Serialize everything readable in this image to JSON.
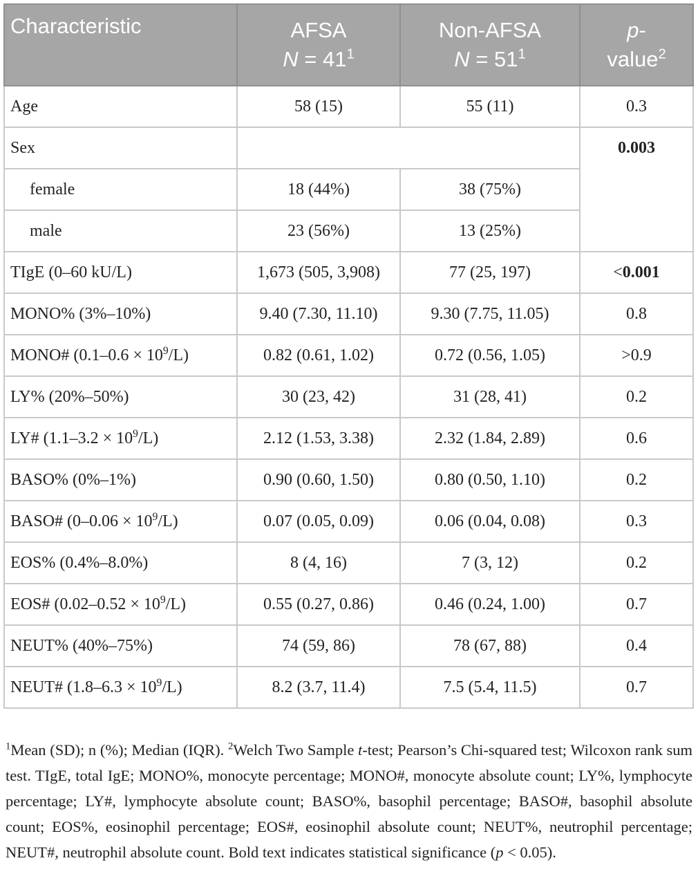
{
  "table": {
    "header": [
      [
        [
          {
            "t": "Characteristic"
          }
        ]
      ],
      [
        [
          {
            "t": "AFSA"
          }
        ],
        [
          {
            "t": "N",
            "s": "i"
          },
          {
            "t": " = 41"
          },
          {
            "t": "1",
            "s": "sup"
          }
        ]
      ],
      [
        [
          {
            "t": "Non-AFSA"
          }
        ],
        [
          {
            "t": "N",
            "s": "i"
          },
          {
            "t": " = 51"
          },
          {
            "t": "1",
            "s": "sup"
          }
        ]
      ],
      [
        [
          {
            "t": "p",
            "s": "i"
          },
          {
            "t": "-"
          }
        ],
        [
          {
            "t": "value"
          },
          {
            "t": "2",
            "s": "sup"
          }
        ]
      ]
    ],
    "rows": [
      {
        "label": [
          {
            "t": "Age"
          }
        ],
        "afsa": [
          {
            "t": "58 (15)"
          }
        ],
        "non_afsa": [
          {
            "t": "55 (11)"
          }
        ],
        "p": [
          {
            "t": "0.3"
          }
        ]
      },
      {
        "label": [
          {
            "t": "Sex"
          }
        ],
        "p": [
          {
            "t": "0.003",
            "s": "b"
          }
        ]
      },
      {
        "label": [
          {
            "t": "female"
          }
        ],
        "afsa": [
          {
            "t": "18 (44%)"
          }
        ],
        "non_afsa": [
          {
            "t": "38 (75%)"
          }
        ]
      },
      {
        "label": [
          {
            "t": "male"
          }
        ],
        "afsa": [
          {
            "t": "23 (56%)"
          }
        ],
        "non_afsa": [
          {
            "t": "13 (25%)"
          }
        ]
      },
      {
        "label": [
          {
            "t": "TIgE (0–60 kU/L)"
          }
        ],
        "afsa": [
          {
            "t": "1,673 (505, 3,908)"
          }
        ],
        "non_afsa": [
          {
            "t": "77 (25, 197)"
          }
        ],
        "p": [
          {
            "t": "<"
          },
          {
            "t": "0.001",
            "s": "b"
          }
        ]
      },
      {
        "label": [
          {
            "t": "MONO% (3%–10%)"
          }
        ],
        "afsa": [
          {
            "t": "9.40 (7.30, 11.10)"
          }
        ],
        "non_afsa": [
          {
            "t": "9.30 (7.75, 11.05)"
          }
        ],
        "p": [
          {
            "t": "0.8"
          }
        ]
      },
      {
        "label": [
          {
            "t": "MONO# (0.1–0.6 × 10"
          },
          {
            "t": "9",
            "s": "sup"
          },
          {
            "t": "/L)"
          }
        ],
        "afsa": [
          {
            "t": "0.82 (0.61, 1.02)"
          }
        ],
        "non_afsa": [
          {
            "t": "0.72 (0.56, 1.05)"
          }
        ],
        "p": [
          {
            "t": ">0.9"
          }
        ]
      },
      {
        "label": [
          {
            "t": "LY% (20%–50%)"
          }
        ],
        "afsa": [
          {
            "t": "30 (23, 42)"
          }
        ],
        "non_afsa": [
          {
            "t": "31 (28, 41)"
          }
        ],
        "p": [
          {
            "t": "0.2"
          }
        ]
      },
      {
        "label": [
          {
            "t": "LY# (1.1–3.2 × 10"
          },
          {
            "t": "9",
            "s": "sup"
          },
          {
            "t": "/L)"
          }
        ],
        "afsa": [
          {
            "t": "2.12 (1.53, 3.38)"
          }
        ],
        "non_afsa": [
          {
            "t": "2.32 (1.84, 2.89)"
          }
        ],
        "p": [
          {
            "t": "0.6"
          }
        ]
      },
      {
        "label": [
          {
            "t": "BASO% (0%–1%)"
          }
        ],
        "afsa": [
          {
            "t": "0.90 (0.60, 1.50)"
          }
        ],
        "non_afsa": [
          {
            "t": "0.80 (0.50, 1.10)"
          }
        ],
        "p": [
          {
            "t": "0.2"
          }
        ]
      },
      {
        "label": [
          {
            "t": "BASO# (0–0.06 × 10"
          },
          {
            "t": "9",
            "s": "sup"
          },
          {
            "t": "/L)"
          }
        ],
        "afsa": [
          {
            "t": "0.07 (0.05, 0.09)"
          }
        ],
        "non_afsa": [
          {
            "t": "0.06 (0.04, 0.08)"
          }
        ],
        "p": [
          {
            "t": "0.3"
          }
        ]
      },
      {
        "label": [
          {
            "t": "EOS% (0.4%–8.0%)"
          }
        ],
        "afsa": [
          {
            "t": "8 (4, 16)"
          }
        ],
        "non_afsa": [
          {
            "t": "7 (3, 12)"
          }
        ],
        "p": [
          {
            "t": "0.2"
          }
        ]
      },
      {
        "label": [
          {
            "t": "EOS# (0.02–0.52 × 10"
          },
          {
            "t": "9",
            "s": "sup"
          },
          {
            "t": "/L)"
          }
        ],
        "afsa": [
          {
            "t": "0.55 (0.27, 0.86)"
          }
        ],
        "non_afsa": [
          {
            "t": "0.46 (0.24, 1.00)"
          }
        ],
        "p": [
          {
            "t": "0.7"
          }
        ]
      },
      {
        "label": [
          {
            "t": "NEUT% (40%–75%)"
          }
        ],
        "afsa": [
          {
            "t": "74 (59, 86)"
          }
        ],
        "non_afsa": [
          {
            "t": "78 (67, 88)"
          }
        ],
        "p": [
          {
            "t": "0.4"
          }
        ]
      },
      {
        "label": [
          {
            "t": "NEUT# (1.8–6.3 × 10"
          },
          {
            "t": "9",
            "s": "sup"
          },
          {
            "t": "/L)"
          }
        ],
        "afsa": [
          {
            "t": "8.2 (3.7, 11.4)"
          }
        ],
        "non_afsa": [
          {
            "t": "7.5 (5.4, 11.5)"
          }
        ],
        "p": [
          {
            "t": "0.7"
          }
        ]
      }
    ]
  },
  "footnote": [
    {
      "t": "1",
      "s": "sup"
    },
    {
      "t": "Mean (SD); n (%); Median (IQR). "
    },
    {
      "t": "2",
      "s": "sup"
    },
    {
      "t": "Welch Two Sample "
    },
    {
      "t": "t",
      "s": "i"
    },
    {
      "t": "-test; Pearson’s Chi-squared test; Wilcoxon rank sum test. TIgE, total IgE; MONO%, monocyte percentage; MONO#, monocyte absolute count; LY%, lymphocyte percentage; LY#, lymphocyte absolute count; BASO%, basophil percentage; BASO#, basophil absolute count; EOS%, eosinophil percentage; EOS#, eosinophil absolute count; NEUT%, neutrophil percentage; NEUT#, neutrophil absolute count. Bold text indicates statistical significance ("
    },
    {
      "t": "p",
      "s": "i"
    },
    {
      "t": " < 0.05)."
    }
  ]
}
